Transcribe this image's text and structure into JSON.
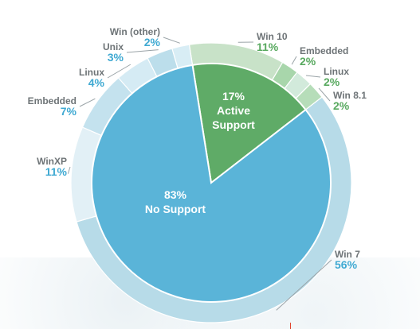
{
  "chart_data": {
    "type": "pie",
    "inner": [
      {
        "name": "Active Support",
        "value": 17,
        "color": "#5fab67",
        "label_lines": [
          "17%",
          "Active",
          "Support"
        ]
      },
      {
        "name": "No Support",
        "value": 83,
        "color": "#5ab4d8",
        "label_lines": [
          "83%",
          "No Support"
        ]
      }
    ],
    "outer": [
      {
        "name": "Win 10",
        "value": 11,
        "pct_label": "11%",
        "color": "#c8e2c8",
        "text_color": "#58a95f"
      },
      {
        "name": "Embedded",
        "value": 2,
        "pct_label": "2%",
        "color": "#a8d6ab",
        "text_color": "#58a95f"
      },
      {
        "name": "Linux",
        "value": 2,
        "pct_label": "2%",
        "color": "#d2eadb",
        "text_color": "#58a95f"
      },
      {
        "name": "Win 8.1",
        "value": 2,
        "pct_label": "2%",
        "color": "#b6ddb9",
        "text_color": "#58a95f"
      },
      {
        "name": "Win 7",
        "value": 56,
        "pct_label": "56%",
        "color": "#b7dbe8",
        "text_color": "#3fa9d2"
      },
      {
        "name": "WinXP",
        "value": 11,
        "pct_label": "11%",
        "color": "#e2f0f6",
        "text_color": "#3fa9d2"
      },
      {
        "name": "Embedded",
        "value": 7,
        "pct_label": "7%",
        "color": "#c4e2ee",
        "text_color": "#3fa9d2"
      },
      {
        "name": "Linux",
        "value": 4,
        "pct_label": "4%",
        "color": "#d5ebf4",
        "text_color": "#3fa9d2"
      },
      {
        "name": "Unix",
        "value": 3,
        "pct_label": "3%",
        "color": "#bcdeeb",
        "text_color": "#3fa9d2"
      },
      {
        "name": "Win (other)",
        "value": 2,
        "pct_label": "2%",
        "color": "#d8edf5",
        "text_color": "#3fa9d2"
      }
    ]
  }
}
